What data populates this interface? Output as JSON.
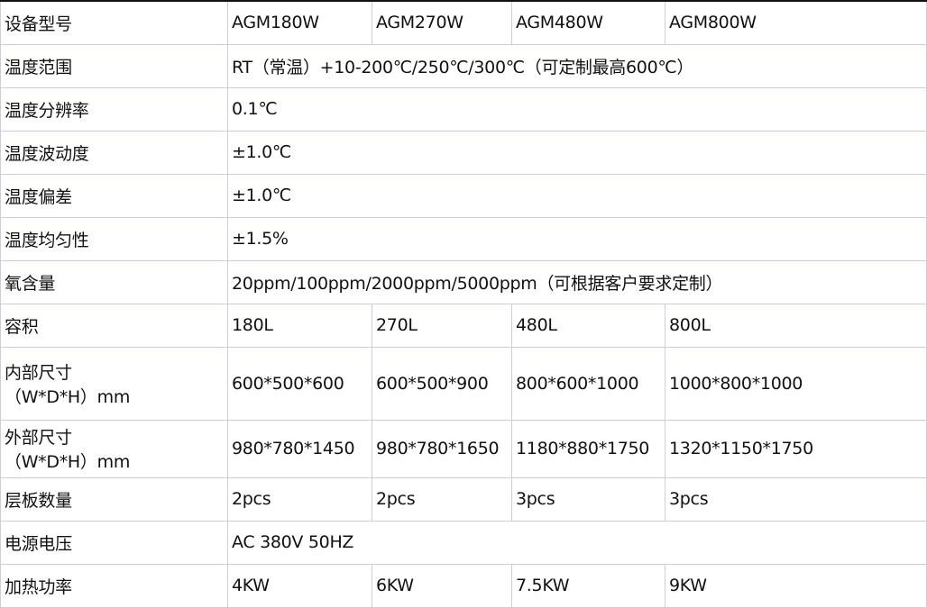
{
  "rows": [
    {
      "label": "设备型号",
      "values": [
        "AGM180W",
        "AGM270W",
        "AGM480W",
        "AGM800W"
      ]
    },
    {
      "label": "温度范围",
      "values": [
        "RT（常温）+10-200℃/250℃/300℃（可定制最高600℃）"
      ]
    },
    {
      "label": "温度分辨率",
      "values": [
        "0.1℃"
      ]
    },
    {
      "label": "温度波动度",
      "values": [
        "±1.0℃"
      ]
    },
    {
      "label": "温度偏差",
      "values": [
        "±1.0℃"
      ]
    },
    {
      "label": "温度均匀性",
      "values": [
        "±1.5%"
      ]
    },
    {
      "label": "氧含量",
      "values": [
        "20ppm/100ppm/2000ppm/5000ppm（可根据客户要求定制）"
      ]
    },
    {
      "label": "容积",
      "values": [
        "180L",
        "270L",
        "480L",
        "800L"
      ]
    },
    {
      "label": "内部尺寸",
      "label2": "（W*D*H）mm",
      "values": [
        "600*500*600",
        "600*500*900",
        "800*600*1000",
        "1000*800*1000"
      ]
    },
    {
      "label": "外部尺寸",
      "label2": "（W*D*H）mm",
      "values": [
        "980*780*1450",
        "980*780*1650",
        "1180*880*1750",
        "1320*1150*1750"
      ]
    },
    {
      "label": "层板数量",
      "values": [
        "2pcs",
        "2pcs",
        "3pcs",
        "3pcs"
      ]
    },
    {
      "label": "电源电压",
      "values": [
        "AC 380V 50HZ"
      ]
    },
    {
      "label": "加热功率",
      "values": [
        "4KW",
        "6KW",
        "7.5KW",
        "9KW"
      ]
    }
  ]
}
